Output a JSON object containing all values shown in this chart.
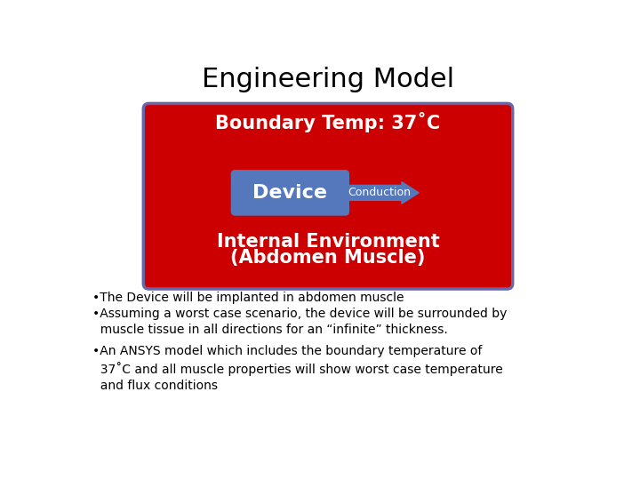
{
  "title": "Engineering Model",
  "boundary_temp_text": "Boundary Temp: 37˚C",
  "device_text": "Device",
  "conduction_text": "Conduction",
  "internal_env_line1": "Internal Environment",
  "internal_env_line2": "(Abdomen Muscle)",
  "bullet1": "•The Device will be implanted in abdomen muscle",
  "bullet2": "•Assuming a worst case scenario, the device will be surrounded by\n  muscle tissue in all directions for an “infinite” thickness.",
  "bullet3": "•An ANSYS model which includes the boundary temperature of\n  37˚C and all muscle properties will show worst case temperature\n  and flux conditions",
  "bg_color": "#ffffff",
  "red_box_color": "#cc0000",
  "red_box_edge_color": "#6666aa",
  "blue_device_color": "#5577bb",
  "arrow_color": "#5577bb",
  "title_fontsize": 22,
  "boundary_fontsize": 15,
  "device_fontsize": 16,
  "conduction_fontsize": 9,
  "internal_fontsize": 15,
  "bullet_fontsize": 10
}
